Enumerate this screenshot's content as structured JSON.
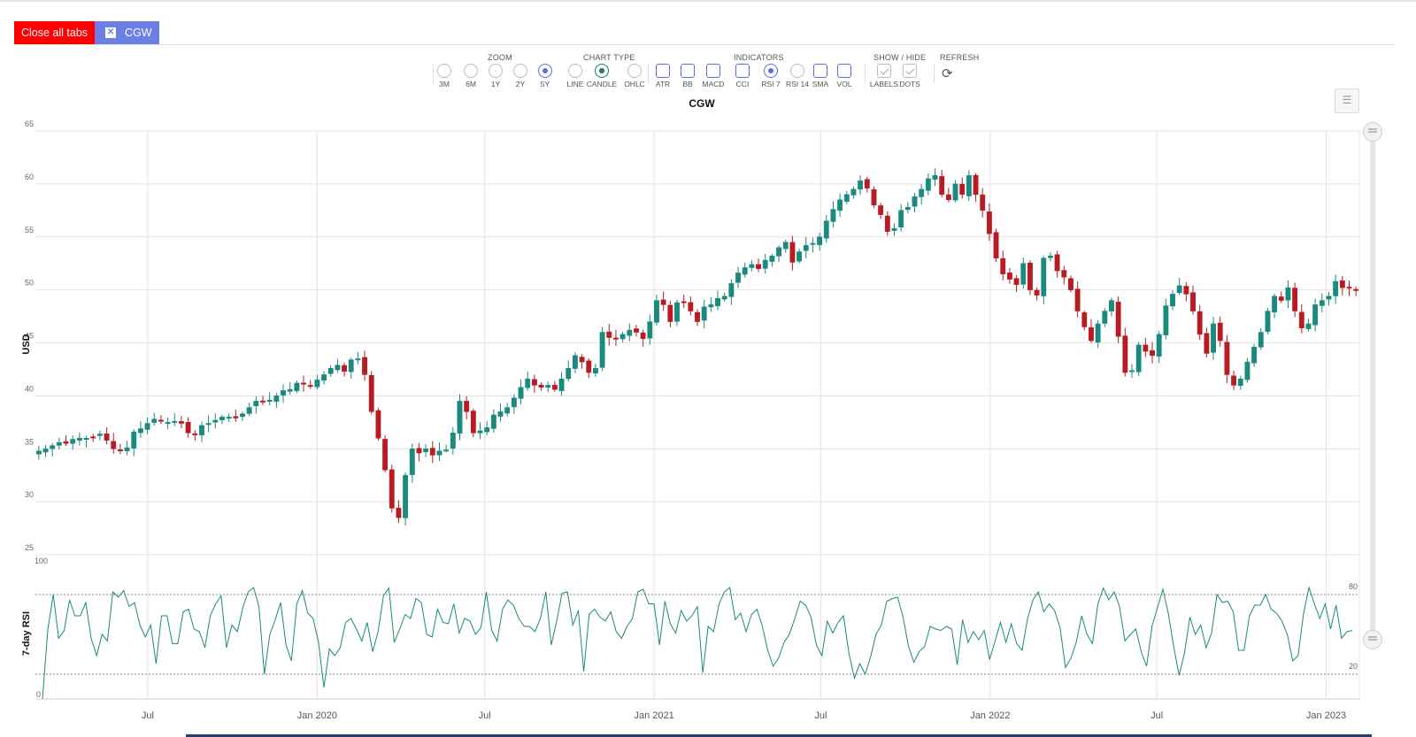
{
  "tabs": {
    "close_all_label": "Close all tabs",
    "active_tab": "CGW",
    "close_icon": "close-icon"
  },
  "toolbar": {
    "zoom": {
      "title": "ZOOM",
      "options": [
        "3M",
        "6M",
        "1Y",
        "2Y",
        "5Y"
      ],
      "selected": "5Y"
    },
    "chart_type": {
      "title": "CHART TYPE",
      "options": [
        "LINE",
        "CANDLE",
        "OHLC"
      ],
      "selected": "CANDLE"
    },
    "indicators": {
      "title": "INDICATORS",
      "options": [
        "ATR",
        "BB",
        "MACD",
        "CCI",
        "RSI 7",
        "RSI 14",
        "SMA",
        "VOL"
      ],
      "selected": "RSI 7"
    },
    "show_hide": {
      "title": "SHOW / HIDE",
      "options": [
        "LABELS",
        "DOTS"
      ]
    },
    "refresh": {
      "title": "REFRESH",
      "icon": "refresh-icon"
    },
    "menu_icon": "menu-icon"
  },
  "chart_data": {
    "type": "candlestick",
    "title": "CGW",
    "ylabel": "USD",
    "ylim": [
      25,
      65
    ],
    "yticks": [
      "65",
      "60",
      "55",
      "50",
      "45",
      "40",
      "35",
      "30",
      "25"
    ],
    "xticks": [
      {
        "label": "Jul",
        "date": "2019-07-01"
      },
      {
        "label": "Jan 2020",
        "date": "2020-01-01"
      },
      {
        "label": "Jul",
        "date": "2020-07-01"
      },
      {
        "label": "Jan 2021",
        "date": "2021-01-01"
      },
      {
        "label": "Jul",
        "date": "2021-07-01"
      },
      {
        "label": "Jan 2022",
        "date": "2022-01-01"
      },
      {
        "label": "Jul",
        "date": "2022-07-01"
      },
      {
        "label": "Jan 2023",
        "date": "2023-01-01"
      }
    ],
    "x_range": [
      "2019-03-01",
      "2023-02-06"
    ],
    "up_color": "#1a8a7e",
    "down_color": "#b81c22",
    "close_weekly": [
      34.8,
      35.0,
      35.3,
      35.6,
      35.5,
      35.9,
      36.0,
      36.0,
      36.1,
      36.4,
      35.8,
      35.0,
      34.9,
      35.1,
      36.6,
      36.9,
      37.4,
      37.8,
      37.6,
      37.5,
      37.6,
      37.4,
      36.5,
      36.4,
      37.2,
      37.4,
      37.7,
      38.0,
      38.0,
      37.9,
      38.3,
      38.9,
      39.5,
      39.4,
      39.6,
      40.0,
      40.5,
      40.6,
      41.2,
      41.1,
      40.9,
      41.5,
      42.0,
      42.6,
      42.9,
      42.3,
      43.4,
      43.5,
      42.0,
      38.5,
      36.0,
      33.0,
      29.4,
      28.5,
      32.5,
      35.0,
      34.6,
      35.0,
      34.4,
      34.8,
      34.9,
      36.5,
      39.5,
      38.5,
      36.5,
      36.7,
      37.0,
      38.2,
      38.5,
      38.9,
      39.8,
      40.8,
      41.6,
      41.0,
      40.8,
      41.0,
      40.6,
      41.6,
      42.6,
      43.8,
      43.2,
      42.2,
      42.6,
      46.0,
      45.5,
      45.4,
      45.8,
      46.2,
      46.0,
      45.4,
      47.0,
      49.0,
      48.6,
      47.0,
      48.8,
      48.8,
      48.0,
      47.0,
      48.4,
      48.6,
      49.2,
      49.4,
      50.6,
      51.6,
      52.1,
      52.4,
      52.0,
      52.8,
      53.2,
      54.0,
      54.5,
      52.6,
      53.6,
      54.2,
      54.4,
      55.0,
      56.5,
      57.6,
      58.5,
      59.0,
      59.5,
      60.3,
      59.6,
      58.0,
      57.1,
      55.5,
      55.8,
      57.5,
      57.8,
      58.8,
      59.5,
      60.5,
      60.8,
      59.0,
      58.5,
      60.0,
      59.0,
      60.8,
      59.0,
      57.5,
      55.3,
      53.0,
      51.5,
      51.0,
      50.5,
      52.5,
      50.0,
      49.5,
      53.0,
      53.2,
      51.8,
      51.2,
      50.0,
      48.0,
      46.5,
      45.2,
      46.8,
      48.0,
      49.0,
      45.6,
      42.2,
      42.4,
      44.8,
      44.2,
      43.8,
      45.8,
      48.5,
      49.6,
      50.4,
      49.6,
      48.0,
      45.8,
      44.0,
      46.8,
      45.2,
      42.0,
      41.0,
      41.6,
      43.2,
      44.6,
      46.0,
      48.0,
      49.4,
      49.0,
      50.2,
      48.0,
      46.4,
      46.8,
      48.6,
      49.0,
      49.4,
      50.8,
      50.2,
      50.2,
      50.0
    ],
    "rsi_panel": {
      "ylabel": "7-day RSI",
      "ylim": [
        0,
        100
      ],
      "yticks": [
        "100",
        "0"
      ],
      "levels": [
        {
          "value": 80,
          "label": "80"
        },
        {
          "value": 20,
          "label": "20"
        }
      ],
      "line_color": "#1a8a7e",
      "values": [
        0,
        54,
        80,
        47,
        53,
        76,
        64,
        64,
        74,
        47,
        34,
        50,
        45,
        82,
        78,
        83,
        71,
        74,
        57,
        48,
        57,
        28,
        64,
        64,
        43,
        43,
        67,
        69,
        54,
        52,
        40,
        64,
        73,
        79,
        40,
        57,
        52,
        70,
        82,
        86,
        71,
        20,
        50,
        61,
        74,
        42,
        30,
        73,
        83,
        66,
        62,
        44,
        10,
        39,
        34,
        40,
        59,
        62,
        54,
        45,
        59,
        37,
        52,
        79,
        85,
        44,
        54,
        65,
        62,
        77,
        74,
        50,
        48,
        69,
        59,
        58,
        73,
        51,
        62,
        60,
        50,
        55,
        82,
        53,
        45,
        69,
        76,
        72,
        62,
        56,
        56,
        52,
        62,
        82,
        42,
        60,
        81,
        82,
        57,
        68,
        22,
        65,
        69,
        63,
        60,
        67,
        52,
        47,
        56,
        62,
        82,
        84,
        73,
        73,
        42,
        75,
        58,
        51,
        68,
        60,
        64,
        71,
        21,
        56,
        52,
        73,
        82,
        86,
        61,
        66,
        52,
        65,
        69,
        56,
        38,
        26,
        32,
        44,
        50,
        62,
        75,
        72,
        63,
        42,
        34,
        60,
        51,
        59,
        64,
        36,
        17,
        28,
        20,
        33,
        50,
        57,
        75,
        77,
        78,
        63,
        41,
        29,
        37,
        41,
        56,
        54,
        53,
        56,
        54,
        27,
        61,
        44,
        52,
        46,
        53,
        31,
        45,
        59,
        44,
        58,
        43,
        38,
        62,
        76,
        82,
        67,
        73,
        68,
        55,
        25,
        32,
        44,
        64,
        50,
        43,
        73,
        85,
        76,
        82,
        71,
        45,
        50,
        54,
        37,
        26,
        56,
        70,
        84,
        66,
        41,
        19,
        36,
        63,
        50,
        57,
        40,
        51,
        80,
        74,
        75,
        67,
        38,
        38,
        64,
        72,
        72,
        80,
        69,
        66,
        60,
        50,
        30,
        34,
        66,
        86,
        73,
        62,
        73,
        54,
        72,
        47,
        52,
        53
      ]
    }
  }
}
